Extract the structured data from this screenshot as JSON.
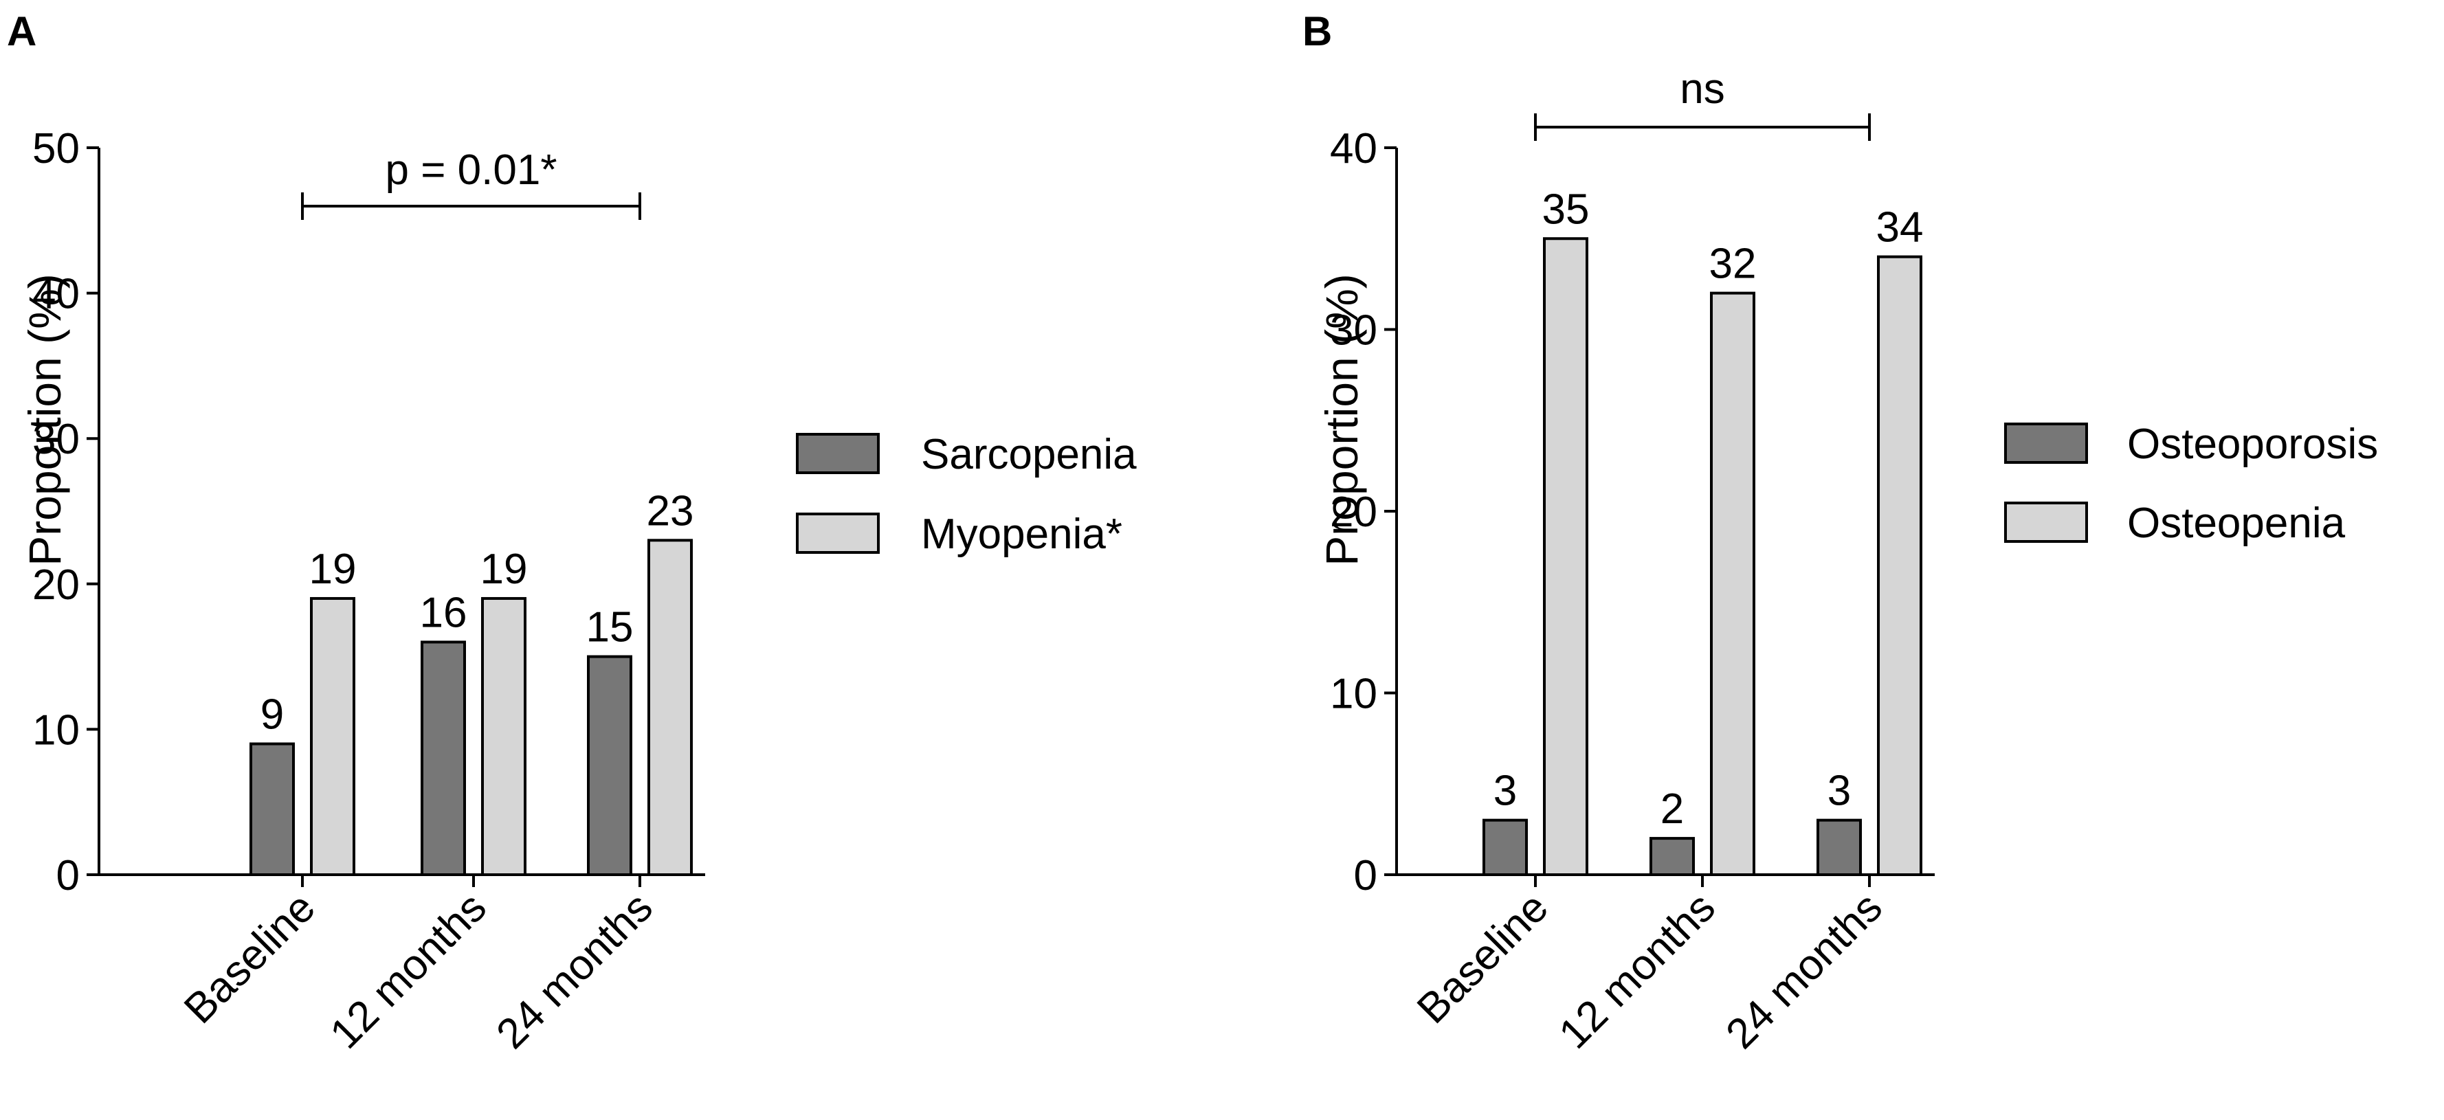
{
  "panels": [
    {
      "letter": "A",
      "ylabel": "Proportion (%)",
      "significance": "p = 0.01*"
    },
    {
      "letter": "B",
      "ylabel": "Proportion (%)",
      "significance": "ns"
    }
  ],
  "colors": {
    "dark_series": "#777777",
    "light_series": "#d6d6d6",
    "stroke": "#000000"
  },
  "chart_data": [
    {
      "type": "bar",
      "title": "",
      "xlabel": "",
      "ylabel": "Proportion (%)",
      "ylim": [
        0,
        50
      ],
      "yticks": [
        0,
        10,
        20,
        30,
        40,
        50
      ],
      "categories": [
        "Baseline",
        "12 months",
        "24 months"
      ],
      "series": [
        {
          "name": "Sarcopenia",
          "values": [
            9,
            16,
            15
          ],
          "labels": [
            "9",
            "16",
            "15"
          ]
        },
        {
          "name": "Myopenia*",
          "values": [
            19,
            19,
            23
          ],
          "labels": [
            "19",
            "19",
            "23"
          ]
        }
      ],
      "annotation": {
        "text": "p = 0.01*",
        "from_category": "Baseline",
        "to_category": "24 months"
      },
      "legend": "right",
      "grid": false
    },
    {
      "type": "bar",
      "title": "",
      "xlabel": "",
      "ylabel": "Proportion (%)",
      "ylim": [
        0,
        40
      ],
      "yticks": [
        0,
        10,
        20,
        30,
        40
      ],
      "categories": [
        "Baseline",
        "12 months",
        "24 months"
      ],
      "series": [
        {
          "name": "Osteoporosis",
          "values": [
            3,
            2,
            3
          ],
          "labels": [
            "3",
            "2",
            "3"
          ]
        },
        {
          "name": "Osteopenia",
          "values": [
            35,
            32,
            34
          ],
          "labels": [
            "35",
            "32",
            "34"
          ]
        }
      ],
      "annotation": {
        "text": "ns",
        "from_category": "Baseline",
        "to_category": "24 months"
      },
      "legend": "right",
      "grid": false
    }
  ]
}
